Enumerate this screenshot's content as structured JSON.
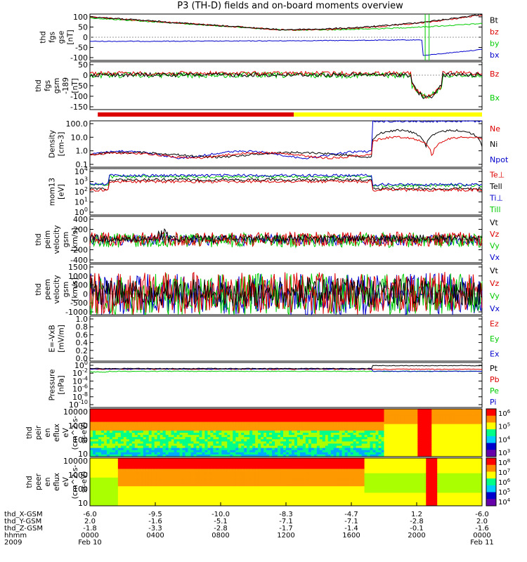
{
  "title": "P3 (TH-D) fields and on-board moments overview",
  "colors": {
    "black": "#000000",
    "red": "#dd0000",
    "green": "#00cc00",
    "blue": "#0000cc",
    "yellow": "#ffff00",
    "orange": "#ff9900"
  },
  "chart_data": [
    {
      "type": "line",
      "panel": "thd_fgs_gse",
      "ylabel": [
        "thd",
        "fgs",
        "gse",
        "[nT]"
      ],
      "yticks": [
        "100",
        "50",
        "0",
        "-50",
        "-100"
      ],
      "ylim": [
        -110,
        110
      ],
      "legend": [
        {
          "name": "Bt",
          "color": "black"
        },
        {
          "name": "bz",
          "color": "red"
        },
        {
          "name": "by",
          "color": "green"
        },
        {
          "name": "bx",
          "color": "blue"
        }
      ]
    },
    {
      "type": "line",
      "panel": "thd_fgs_gsm",
      "ylabel": [
        "thd",
        "fgs",
        "gsm",
        "-189",
        "[nT]"
      ],
      "yticks": [
        "50",
        "0",
        "-50",
        "-100",
        "-150"
      ],
      "ylim": [
        -180,
        60
      ],
      "legend": [
        {
          "name": "Bz",
          "color": "red"
        },
        {
          "name": "Bx",
          "color": "green"
        }
      ]
    },
    {
      "type": "line",
      "panel": "density",
      "ylabel": [
        "Density",
        "[cm-3]"
      ],
      "yticks": [
        "100.0",
        "10.0",
        "1.0",
        "0.1"
      ],
      "scale": "log",
      "ylim": [
        0.06,
        200
      ],
      "legend": [
        {
          "name": "Ne",
          "color": "red"
        },
        {
          "name": "Ni",
          "color": "black"
        },
        {
          "name": "Npot",
          "color": "blue"
        }
      ]
    },
    {
      "type": "line",
      "panel": "temperature",
      "ylabel": [
        "mom13",
        "[eV]"
      ],
      "yticks": [
        "10",
        "10",
        "10",
        "10",
        "10"
      ],
      "ytick_exp": [
        "4",
        "3",
        "2",
        "1",
        "0"
      ],
      "scale": "log",
      "legend": [
        {
          "name": "Te⊥",
          "color": "red"
        },
        {
          "name": "Tell",
          "color": "black"
        },
        {
          "name": "Ti⊥",
          "color": "blue"
        },
        {
          "name": "Till",
          "color": "green"
        }
      ]
    },
    {
      "type": "line",
      "panel": "peim_velocity",
      "ylabel": [
        "thd",
        "peim",
        "velocity",
        "gsm",
        "[km/s]"
      ],
      "yticks": [
        "400",
        "200",
        "0",
        "-200",
        "-400"
      ],
      "legend": [
        {
          "name": "Vt",
          "color": "black"
        },
        {
          "name": "Vz",
          "color": "red"
        },
        {
          "name": "Vy",
          "color": "green"
        },
        {
          "name": "Vx",
          "color": "blue"
        }
      ]
    },
    {
      "type": "line",
      "panel": "peem_velocity",
      "ylabel": [
        "thd",
        "peem",
        "velocity",
        "gsm",
        "[km/s]"
      ],
      "yticks": [
        "1500",
        "1000",
        "500",
        "0",
        "-500",
        "-1000"
      ],
      "legend": [
        {
          "name": "Vt",
          "color": "black"
        },
        {
          "name": "Vz",
          "color": "red"
        },
        {
          "name": "Vy",
          "color": "green"
        },
        {
          "name": "Vx",
          "color": "blue"
        }
      ]
    },
    {
      "type": "line",
      "panel": "e_vxb",
      "ylabel": [
        "E=-VxB",
        "[mV/m]"
      ],
      "yticks": [
        "1.0",
        "0.8",
        "0.6",
        "0.4",
        "0.2",
        "0.0"
      ],
      "legend": [
        {
          "name": "Ez",
          "color": "red"
        },
        {
          "name": "Ey",
          "color": "green"
        },
        {
          "name": "Ex",
          "color": "blue"
        }
      ]
    },
    {
      "type": "line",
      "panel": "pressure",
      "ylabel": [
        "Pressure",
        "[nPa]"
      ],
      "yticks": [
        "10",
        "10",
        "10",
        "10",
        "10",
        "10"
      ],
      "ytick_exp": [
        "0",
        "-2",
        "-4",
        "-6",
        "-8",
        "-10"
      ],
      "scale": "log",
      "legend": [
        {
          "name": "Pt",
          "color": "black"
        },
        {
          "name": "Pb",
          "color": "red"
        },
        {
          "name": "Pe",
          "color": "green"
        },
        {
          "name": "Pi",
          "color": "blue"
        }
      ]
    },
    {
      "type": "heatmap",
      "panel": "peir_en_eflux",
      "ylabel": [
        "thd",
        "peir",
        "en",
        "eflux",
        "eV",
        "(cm^2-s-",
        "sr-eV)"
      ],
      "yticks": [
        "10000",
        "1000",
        "100",
        "10"
      ],
      "cbar_ticks": [
        "10",
        "10",
        "10",
        "10"
      ],
      "cbar_exp": [
        "6",
        "5",
        "4",
        "3"
      ]
    },
    {
      "type": "heatmap",
      "panel": "peer_en_eflux",
      "ylabel": [
        "thd",
        "peer",
        "en",
        "eflux",
        "eV",
        "(cm^2-s-",
        "sr-eV)"
      ],
      "yticks": [
        "10000",
        "1000",
        "100",
        "10"
      ],
      "cbar_ticks": [
        "10",
        "10",
        "10",
        "10",
        "10"
      ],
      "cbar_exp": [
        "8",
        "7",
        "6",
        "5",
        "4"
      ]
    }
  ],
  "x_axis": {
    "row_labels": [
      "thd_X-GSM",
      "thd_Y-GSM",
      "thd_Z-GSM",
      "hhmm",
      "2009"
    ],
    "columns": [
      {
        "x": "-6.0",
        "y": "2.0",
        "z": "-1.8",
        "hhmm": "0000",
        "date": "Feb 10"
      },
      {
        "x": "-9.5",
        "y": "-1.6",
        "z": "-3.3",
        "hhmm": "0400",
        "date": ""
      },
      {
        "x": "-10.0",
        "y": "-5.1",
        "z": "-2.8",
        "hhmm": "0800",
        "date": ""
      },
      {
        "x": "-8.3",
        "y": "-7.1",
        "z": "-1.7",
        "hhmm": "1200",
        "date": ""
      },
      {
        "x": "-4.7",
        "y": "-7.1",
        "z": "-1.4",
        "hhmm": "1600",
        "date": ""
      },
      {
        "x": "1.2",
        "y": "-2.8",
        "z": "-0.1",
        "hhmm": "2000",
        "date": ""
      },
      {
        "x": "-6.0",
        "y": "2.0",
        "z": "-1.6",
        "hhmm": "0000",
        "date": "Feb 11"
      }
    ]
  }
}
